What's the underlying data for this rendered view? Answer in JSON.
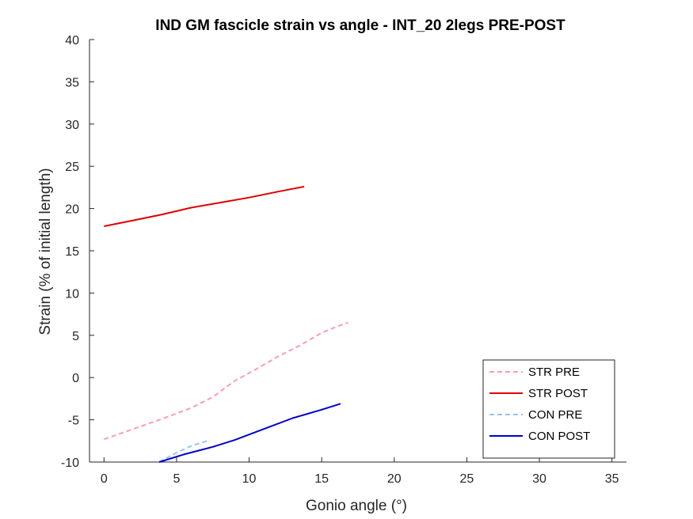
{
  "chart_data": {
    "type": "line",
    "title": "IND GM fascicle strain vs angle - INT_20 2legs PRE-POST",
    "xlabel": "Gonio angle (°)",
    "ylabel": "Strain (% of initial length)",
    "xlim": [
      -1,
      36
    ],
    "ylim": [
      -10,
      40
    ],
    "xticks": [
      0,
      5,
      10,
      15,
      20,
      25,
      30,
      35
    ],
    "yticks": [
      -10,
      -5,
      0,
      5,
      10,
      15,
      20,
      25,
      30,
      35,
      40
    ],
    "grid": false,
    "legend_position": "bottom-right",
    "series": [
      {
        "name": "STR PRE",
        "color": "#ff99bb",
        "style": "dashed",
        "x": [
          0,
          2,
          4,
          6,
          7.5,
          9,
          10.5,
          12,
          13.5,
          15,
          16,
          16.8
        ],
        "y": [
          -7.3,
          -6.1,
          -4.9,
          -3.6,
          -2.3,
          -0.4,
          1.0,
          2.5,
          3.8,
          5.3,
          6.0,
          6.5
        ]
      },
      {
        "name": "STR POST",
        "color": "#e00000",
        "style": "solid",
        "x": [
          0,
          2,
          4,
          6,
          8,
          10,
          12,
          13.8
        ],
        "y": [
          17.9,
          18.6,
          19.3,
          20.1,
          20.7,
          21.3,
          22.0,
          22.6
        ]
      },
      {
        "name": "CON PRE",
        "color": "#99c4f0",
        "style": "dashed",
        "x": [
          3.8,
          5,
          6,
          7.3
        ],
        "y": [
          -10.0,
          -8.9,
          -8.1,
          -7.4
        ]
      },
      {
        "name": "CON POST",
        "color": "#0000d0",
        "style": "solid",
        "x": [
          3.8,
          5.5,
          7.5,
          9,
          11,
          13,
          15,
          16.3
        ],
        "y": [
          -10.0,
          -9.1,
          -8.2,
          -7.4,
          -6.1,
          -4.8,
          -3.8,
          -3.1
        ]
      }
    ]
  }
}
